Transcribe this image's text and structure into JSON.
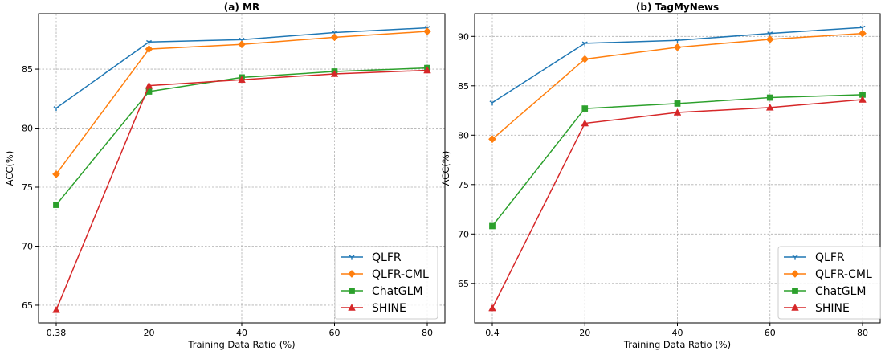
{
  "chart_data": [
    {
      "type": "line",
      "title": "(a) MR",
      "xlabel": "Training Data Ratio (%)",
      "ylabel": "ACC(%)",
      "categories": [
        "0.38",
        "20",
        "40",
        "60",
        "80"
      ],
      "ylim": [
        63.5,
        89.7
      ],
      "yticks": [
        65,
        70,
        75,
        80,
        85
      ],
      "grid": true,
      "legend_position": "lower-right",
      "series": [
        {
          "name": "QLFR",
          "color": "#1f77b4",
          "marker": "tri_down",
          "values": [
            81.7,
            87.3,
            87.5,
            88.1,
            88.5
          ]
        },
        {
          "name": "QLFR-CML",
          "color": "#ff7f0e",
          "marker": "diamond",
          "values": [
            76.1,
            86.7,
            87.1,
            87.7,
            88.2
          ]
        },
        {
          "name": "ChatGLM",
          "color": "#2ca02c",
          "marker": "square",
          "values": [
            73.5,
            83.1,
            84.3,
            84.8,
            85.1
          ]
        },
        {
          "name": "SHINE",
          "color": "#d62728",
          "marker": "triangle",
          "values": [
            64.6,
            83.6,
            84.1,
            84.6,
            84.9
          ]
        }
      ]
    },
    {
      "type": "line",
      "title": "(b) TagMyNews",
      "xlabel": "Training Data Ratio (%)",
      "ylabel": "ACC(%)",
      "categories": [
        "0.4",
        "20",
        "40",
        "60",
        "80"
      ],
      "ylim": [
        61.0,
        92.3
      ],
      "yticks": [
        65,
        70,
        75,
        80,
        85,
        90
      ],
      "grid": true,
      "legend_position": "lower-right",
      "series": [
        {
          "name": "QLFR",
          "color": "#1f77b4",
          "marker": "tri_down",
          "values": [
            83.3,
            89.3,
            89.6,
            90.3,
            90.9
          ]
        },
        {
          "name": "QLFR-CML",
          "color": "#ff7f0e",
          "marker": "diamond",
          "values": [
            79.6,
            87.7,
            88.9,
            89.7,
            90.3
          ]
        },
        {
          "name": "ChatGLM",
          "color": "#2ca02c",
          "marker": "square",
          "values": [
            70.8,
            82.7,
            83.2,
            83.8,
            84.1
          ]
        },
        {
          "name": "SHINE",
          "color": "#d62728",
          "marker": "triangle",
          "values": [
            62.5,
            81.2,
            82.3,
            82.8,
            83.6
          ]
        }
      ]
    }
  ]
}
